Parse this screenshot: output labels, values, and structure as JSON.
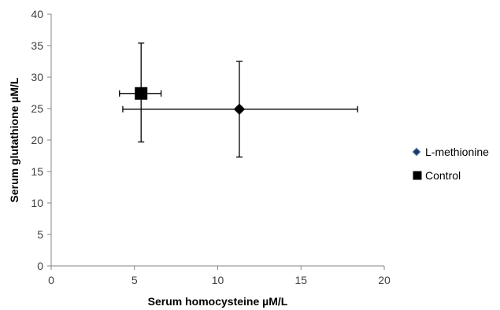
{
  "chart_data": {
    "type": "scatter",
    "xlabel": "Serum homocysteine µM/L",
    "ylabel": "Serum glutathione µM/L",
    "xlim": [
      0,
      20
    ],
    "ylim": [
      0,
      40
    ],
    "x_ticks": [
      0,
      5,
      10,
      15,
      20
    ],
    "y_ticks": [
      0,
      5,
      10,
      15,
      20,
      25,
      30,
      35,
      40
    ],
    "grid": false,
    "legend_position": "right",
    "series": [
      {
        "name": "L-methionine",
        "marker": "diamond",
        "color": "#000000",
        "x": 11.3,
        "y": 24.9,
        "x_error": [
          4.3,
          18.4
        ],
        "y_error": [
          17.3,
          32.5
        ]
      },
      {
        "name": "Control",
        "marker": "square",
        "color": "#000000",
        "x": 5.4,
        "y": 27.4,
        "x_error": [
          4.1,
          6.6
        ],
        "y_error": [
          19.7,
          35.4
        ]
      }
    ]
  }
}
